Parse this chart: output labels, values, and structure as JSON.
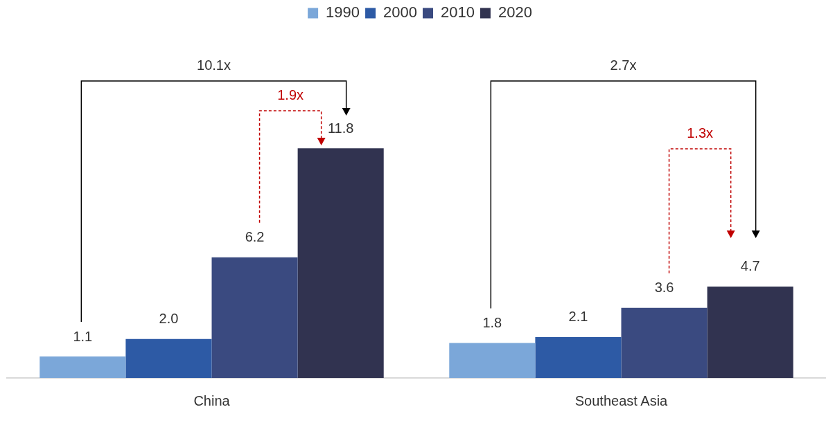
{
  "chart_data": {
    "type": "bar",
    "categories": [
      "China",
      "Southeast Asia"
    ],
    "series": [
      {
        "name": "1990",
        "color": "#7ba7d9",
        "values": [
          1.1,
          1.8
        ],
        "value_labels": [
          "1.1",
          "1.8"
        ]
      },
      {
        "name": "2000",
        "color": "#2d5aa5",
        "values": [
          2.0,
          2.1
        ],
        "value_labels": [
          "2.0",
          "2.1"
        ]
      },
      {
        "name": "2010",
        "color": "#3a4a80",
        "values": [
          6.2,
          3.6
        ],
        "value_labels": [
          "6.2",
          "3.6"
        ]
      },
      {
        "name": "2020",
        "color": "#313350",
        "values": [
          11.8,
          4.7
        ],
        "value_labels": [
          "11.8",
          "4.7"
        ]
      }
    ],
    "tick_labels": "x",
    "grid": false,
    "legend": "top",
    "annotations": [
      "10.1x",
      "1.9x",
      "2.7x",
      "1.3x"
    ]
  }
}
